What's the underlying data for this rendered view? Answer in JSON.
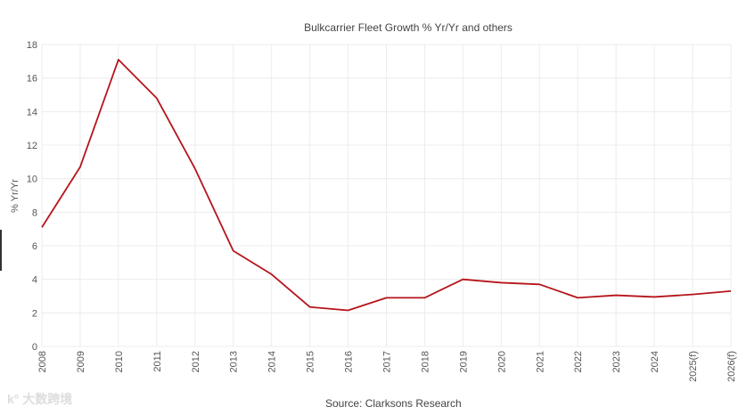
{
  "chart_data": {
    "type": "line",
    "title": "Bulkcarrier Fleet Growth % Yr/Yr and others",
    "xlabel": "",
    "ylabel": "% Yr/Yr",
    "ylim": [
      0,
      18
    ],
    "yticks": [
      0,
      2,
      4,
      6,
      8,
      10,
      12,
      14,
      16,
      18
    ],
    "grid": true,
    "categories": [
      "2008",
      "2009",
      "2010",
      "2011",
      "2012",
      "2013",
      "2014",
      "2015",
      "2016",
      "2017",
      "2018",
      "2019",
      "2020",
      "2021",
      "2022",
      "2023",
      "2024",
      "2025(f)",
      "2026(f)"
    ],
    "series": [
      {
        "name": "Bulkcarrier Fleet Growth",
        "color": "#b5151b",
        "values": [
          7.1,
          10.7,
          17.1,
          14.8,
          10.6,
          5.7,
          4.3,
          2.35,
          2.15,
          2.9,
          2.9,
          4.0,
          3.8,
          3.7,
          2.9,
          3.05,
          2.95,
          3.1,
          3.3
        ]
      }
    ]
  },
  "source": "Source: Clarksons Research",
  "watermark": "大数跨境"
}
